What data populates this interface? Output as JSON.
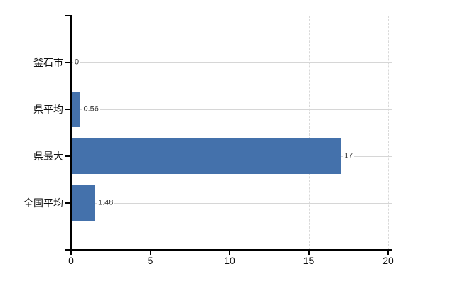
{
  "chart_data": {
    "type": "bar",
    "orientation": "horizontal",
    "title": "",
    "categories": [
      "釜石市",
      "県平均",
      "県最大",
      "全国平均"
    ],
    "values": [
      0,
      0.56,
      17,
      1.48
    ],
    "value_labels": [
      "0",
      "0.56",
      "17",
      "1.48"
    ],
    "x_axis": {
      "min": 0,
      "max": 20,
      "ticks": [
        0,
        5,
        10,
        15,
        20
      ],
      "tick_labels": [
        "0",
        "5",
        "10",
        "15",
        "20"
      ]
    },
    "grid": {
      "vertical_gridlines": true,
      "category_lines": true,
      "top_boundary_line": true
    },
    "legend": "none",
    "colors": {
      "bar": "#4471ab",
      "grid": "#d9d9d9",
      "category_line": "#d6d6d6",
      "axis": "#000000",
      "value_label_text": "#333333",
      "axis_label_text": "#111111",
      "background": "#ffffff"
    }
  }
}
